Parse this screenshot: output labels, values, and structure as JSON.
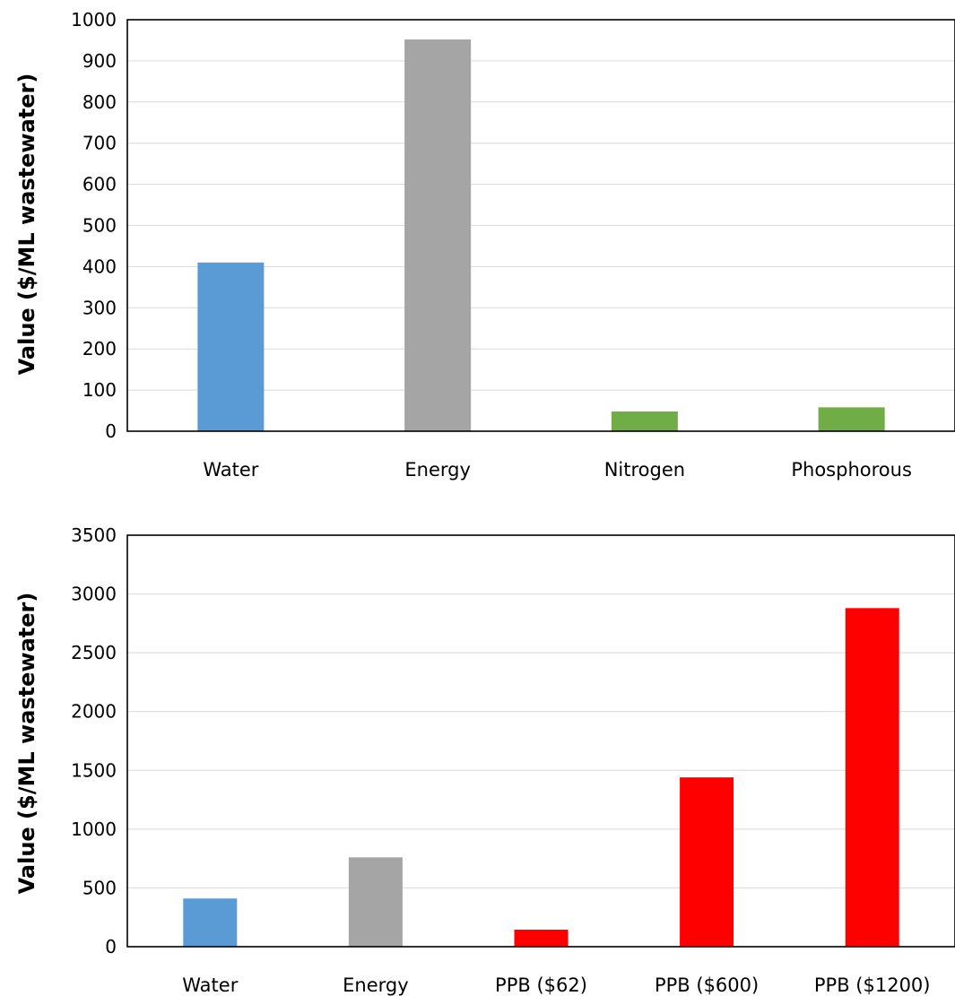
{
  "chart_data": [
    {
      "type": "bar",
      "title": "",
      "xlabel": "",
      "ylabel": "Value ($/ML wastewater)",
      "ylim": [
        0,
        1000
      ],
      "yticks": [
        0,
        100,
        200,
        300,
        400,
        500,
        600,
        700,
        800,
        900,
        1000
      ],
      "grid": true,
      "categories": [
        "Water",
        "Energy",
        "Nitrogen",
        "Phosphorous"
      ],
      "values": [
        410,
        952,
        48,
        58
      ],
      "colors": [
        "#5b9bd5",
        "#a5a5a5",
        "#70ad47",
        "#70ad47"
      ]
    },
    {
      "type": "bar",
      "title": "",
      "xlabel": "",
      "ylabel": "Value ($/ML wastewater)",
      "ylim": [
        0,
        3500
      ],
      "yticks": [
        0,
        500,
        1000,
        1500,
        2000,
        2500,
        3000,
        3500
      ],
      "grid": true,
      "categories": [
        "Water",
        "Energy",
        "PPB ($62)",
        "PPB ($600)",
        "PPB ($1200)"
      ],
      "values": [
        410,
        760,
        145,
        1440,
        2880
      ],
      "colors": [
        "#5b9bd5",
        "#a5a5a5",
        "#ff0000",
        "#ff0000",
        "#ff0000"
      ]
    }
  ]
}
